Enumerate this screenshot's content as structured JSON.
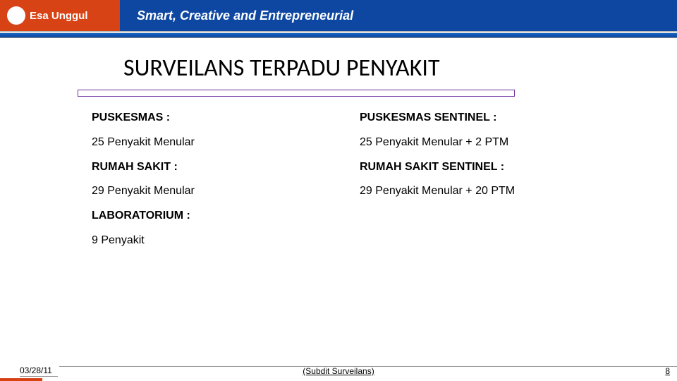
{
  "header": {
    "brand": "Esa Unggul",
    "tagline": "Smart, Creative and Entrepreneurial",
    "colors": {
      "orange": "#d84315",
      "blue": "#0d47a1"
    }
  },
  "title": "SURVEILANS TERPADU PENYAKIT",
  "content": {
    "rows": [
      {
        "left": "PUSKESMAS :",
        "right": "PUSKESMAS SENTINEL :",
        "bold": true
      },
      {
        "left": "25 Penyakit Menular",
        "right": "25 Penyakit Menular + 2 PTM",
        "bold": false
      },
      {
        "left": "RUMAH SAKIT :",
        "right": "RUMAH SAKIT SENTINEL :",
        "bold": true
      },
      {
        "left": "29 Penyakit Menular",
        "right": "29 Penyakit Menular + 20 PTM",
        "bold": false
      },
      {
        "left": "LABORATORIUM :",
        "right": "",
        "bold": true
      },
      {
        "left": "9 Penyakit",
        "right": "",
        "bold": false
      }
    ]
  },
  "footer": {
    "date": "03/28/11",
    "center": "(Subdit Surveilans)",
    "page": "8"
  }
}
